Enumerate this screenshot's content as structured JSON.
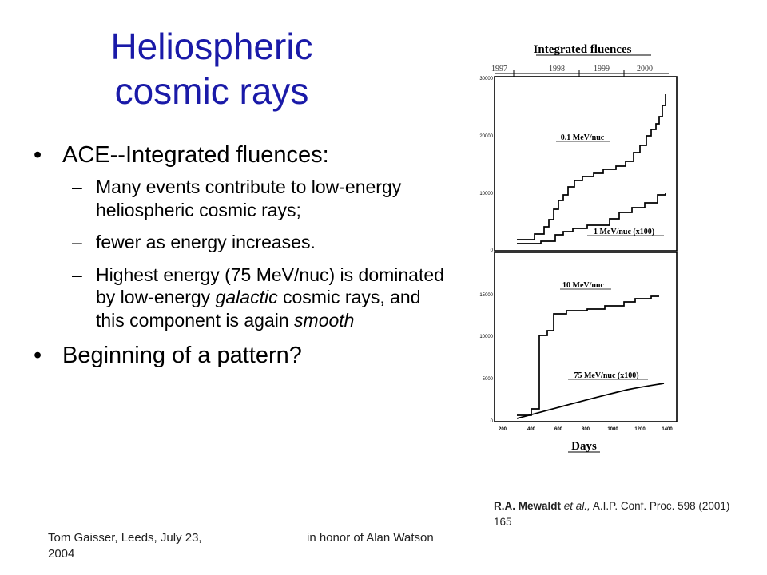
{
  "title": {
    "line1": "Heliospheric",
    "line2": "cosmic rays"
  },
  "bullets": {
    "b1": "ACE--Integrated fluences:",
    "s1": "Many events contribute to low-energy heliospheric cosmic rays;",
    "s2": "fewer as energy increases.",
    "s3a": "Highest energy (75 MeV/nuc) is dominated by low-energy ",
    "s3b": "galactic",
    "s3c": " cosmic rays, and this component is again ",
    "s3d": "smooth",
    "b2": "Beginning of a pattern?"
  },
  "figure": {
    "title": "Integrated fluences",
    "years": [
      "1997",
      "1998",
      "1999",
      "2000"
    ],
    "top_yticks": [
      "30000",
      "20000",
      "10000",
      "0"
    ],
    "bottom_yticks": [
      "15000",
      "10000",
      "5000",
      "0"
    ],
    "xticks": [
      "200",
      "400",
      "600",
      "800",
      "1000",
      "1200",
      "1400"
    ],
    "xlabel": "Days",
    "series": {
      "s1": "0.1 MeV/nuc",
      "s2": "1 MeV/nuc (x100)",
      "s3": "10 MeV/nuc",
      "s4": "75 MeV/nuc (x100)"
    }
  },
  "credit": {
    "author": "R.A. Mewaldt",
    "etal": "et al.,",
    "ref": " A.I.P. Conf. Proc. 598 (2001) 165"
  },
  "footer": {
    "left": "Tom Gaisser, Leeds, July 23, 2004",
    "center": "in honor of Alan Watson"
  }
}
